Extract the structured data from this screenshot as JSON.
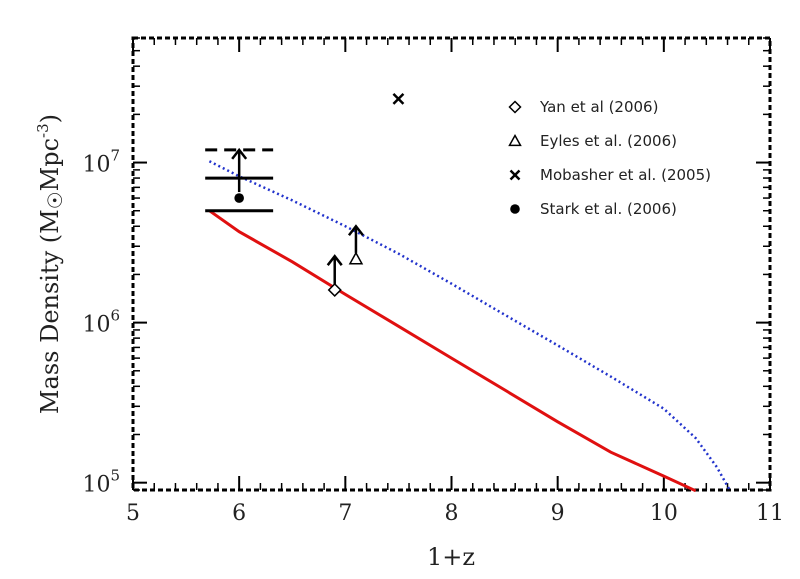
{
  "chart_data": {
    "type": "line",
    "xlabel": "1+z",
    "ylabel": "Mass Density (M☉Mpc⁻³)",
    "ylabel_parts": {
      "main": "Mass Density (M",
      "sun": "☉",
      "unit": "Mpc",
      "exp": "-3",
      "close": ")"
    },
    "xlim": [
      5,
      11
    ],
    "ylim": [
      90000,
      60000000
    ],
    "yscale": "log",
    "x_ticks": [
      "5",
      "6",
      "7",
      "8",
      "9",
      "10",
      "11"
    ],
    "x_tick_values": [
      5,
      6,
      7,
      8,
      9,
      10,
      11
    ],
    "y_ticks": [
      {
        "value": 100000,
        "base": "10",
        "exp": "5"
      },
      {
        "value": 1000000,
        "base": "10",
        "exp": "6"
      },
      {
        "value": 10000000,
        "base": "10",
        "exp": "7"
      }
    ],
    "grid": false,
    "legend_position": "top-right",
    "series": [
      {
        "style": "solid",
        "color": "#e01010",
        "x": [
          5.72,
          6.0,
          6.5,
          7.0,
          7.5,
          8.0,
          8.5,
          9.0,
          9.5,
          10.0,
          10.3
        ],
        "y": [
          5000000,
          3700000,
          2400000,
          1500000,
          950000,
          600000,
          380000,
          240000,
          155000,
          110000,
          89000
        ]
      },
      {
        "style": "dotted",
        "color": "#2233cc",
        "x": [
          5.72,
          6.0,
          6.5,
          7.0,
          7.5,
          8.0,
          8.5,
          9.0,
          9.5,
          10.0,
          10.3,
          10.5,
          10.62
        ],
        "y": [
          10200000,
          8200000,
          5800000,
          4000000,
          2700000,
          1750000,
          1120000,
          720000,
          460000,
          290000,
          190000,
          125000,
          90000
        ]
      }
    ],
    "points": [
      {
        "label": "Yan et al (2006)",
        "marker": "diamond",
        "x": 6.9,
        "y": 1600000,
        "lower_limit": true,
        "arrow_to": 2600000
      },
      {
        "label": "Eyles et al. (2006)",
        "marker": "triangle",
        "x": 7.1,
        "y": 2500000,
        "lower_limit": true,
        "arrow_to": 4000000
      },
      {
        "label": "Mobasher et al. (2005)",
        "marker": "x",
        "x": 7.5,
        "y": 25000000
      },
      {
        "label": "Stark et al. (2006)",
        "marker": "circle",
        "x": 6.0,
        "y": 6000000,
        "bars": [
          {
            "y": 5000000,
            "style": "solid"
          },
          {
            "y": 8000000,
            "style": "solid"
          },
          {
            "y": 12000000,
            "style": "dashed"
          }
        ],
        "bar_x": [
          5.68,
          6.32
        ],
        "lower_limit": true,
        "arrow_to": 12000000
      }
    ],
    "legend": [
      {
        "label": "Yan et al (2006)",
        "marker": "diamond"
      },
      {
        "label": "Eyles et al. (2006)",
        "marker": "triangle"
      },
      {
        "label": "Mobasher et al. (2005)",
        "marker": "x"
      },
      {
        "label": "Stark et al. (2006)",
        "marker": "circle"
      }
    ]
  }
}
